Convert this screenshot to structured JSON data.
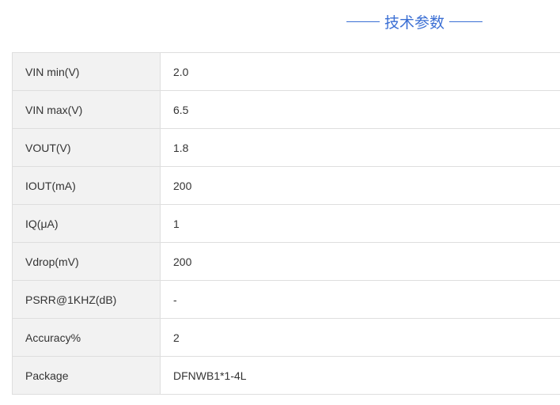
{
  "title": "技术参数",
  "accent": "#3b6fd4",
  "rows": [
    [
      "VIN min(V)",
      "2.0"
    ],
    [
      "VIN max(V)",
      "6.5"
    ],
    [
      "VOUT(V)",
      "1.8"
    ],
    [
      "IOUT(mA)",
      "200"
    ],
    [
      "IQ(μA)",
      "1"
    ],
    [
      "Vdrop(mV)",
      "200"
    ],
    [
      "PSRR@1KHZ(dB)",
      "-"
    ],
    [
      "Accuracy%",
      "2"
    ],
    [
      "Package",
      "DFNWB1*1-4L"
    ]
  ]
}
